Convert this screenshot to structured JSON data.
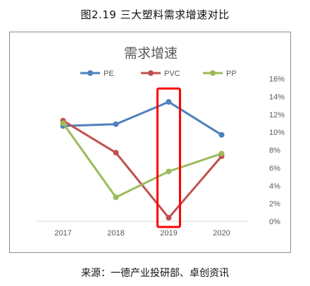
{
  "figure": {
    "caption": "图2.19  三大塑料需求增速对比",
    "source": "来源：一德产业投研部、卓创资讯"
  },
  "chart_data": {
    "type": "line",
    "title": "需求增速",
    "categories": [
      "2017",
      "2018",
      "2019",
      "2020"
    ],
    "series": [
      {
        "name": "PE",
        "color": "#4f81bd",
        "values": [
          0.107,
          0.109,
          0.134,
          0.097
        ]
      },
      {
        "name": "PVC",
        "color": "#c0504d",
        "values": [
          0.113,
          0.077,
          0.004,
          0.073
        ]
      },
      {
        "name": "PP",
        "color": "#9bbb59",
        "values": [
          0.11,
          0.027,
          0.056,
          0.076
        ]
      }
    ],
    "y_axis": {
      "position": "right",
      "ylim": [
        0,
        0.16
      ],
      "ticks": [
        "0%",
        "2%",
        "4%",
        "6%",
        "8%",
        "10%",
        "12%",
        "14%",
        "16%"
      ]
    },
    "grid": false,
    "legend": "top",
    "highlight": {
      "category": "2019",
      "color": "#ff0000"
    }
  }
}
